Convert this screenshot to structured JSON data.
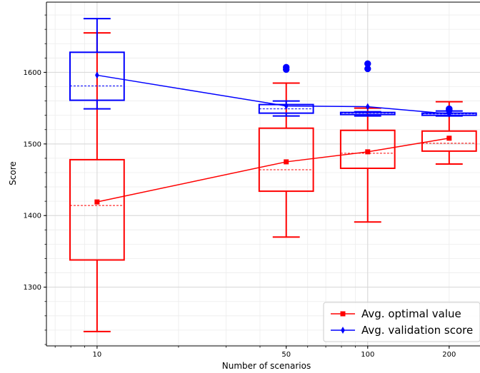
{
  "chart_data": {
    "type": "box",
    "xlabel": "Number of scenarios",
    "ylabel": "Score",
    "x_scale": "log",
    "xlim": [
      6.5,
      260
    ],
    "ylim": [
      1218,
      1698
    ],
    "x_ticks": [
      10,
      50,
      100,
      200
    ],
    "x_tick_labels": [
      "10",
      "50",
      "100",
      "200"
    ],
    "y_ticks": [
      1300,
      1400,
      1500,
      1600
    ],
    "y_tick_labels": [
      "1300",
      "1400",
      "1500",
      "1600"
    ],
    "grid": true,
    "legend_position": "lower-right",
    "series": [
      {
        "name": "Avg. optimal value",
        "color": "#ff0000",
        "marker": "square",
        "boxes": [
          {
            "x": 10,
            "whisker_low": 1238,
            "q1": 1338,
            "median": 1414,
            "q3": 1478,
            "whisker_high": 1655,
            "mean": 1419,
            "fliers": []
          },
          {
            "x": 50,
            "whisker_low": 1370,
            "q1": 1434,
            "median": 1464,
            "q3": 1522,
            "whisker_high": 1585,
            "mean": 1475,
            "fliers": []
          },
          {
            "x": 100,
            "whisker_low": 1391,
            "q1": 1466,
            "median": 1487,
            "q3": 1519,
            "whisker_high": 1550,
            "mean": 1489,
            "fliers": []
          },
          {
            "x": 200,
            "whisker_low": 1472,
            "q1": 1490,
            "median": 1501,
            "q3": 1518,
            "whisker_high": 1559,
            "mean": 1508,
            "fliers": []
          }
        ]
      },
      {
        "name": "Avg. validation score",
        "color": "#0000ff",
        "marker": "thin_diamond",
        "boxes": [
          {
            "x": 10,
            "whisker_low": 1549,
            "q1": 1561,
            "median": 1581,
            "q3": 1628,
            "whisker_high": 1675,
            "mean": 1596,
            "fliers": []
          },
          {
            "x": 50,
            "whisker_low": 1539,
            "q1": 1543,
            "median": 1549,
            "q3": 1555,
            "whisker_high": 1560,
            "mean": 1553,
            "fliers": [
              1604,
              1607
            ]
          },
          {
            "x": 100,
            "whisker_low": 1539,
            "q1": 1541,
            "median": 1543,
            "q3": 1544,
            "whisker_high": 1545,
            "mean": 1552,
            "fliers": [
              1605,
              1612
            ]
          },
          {
            "x": 200,
            "whisker_low": 1539,
            "q1": 1540,
            "median": 1542,
            "q3": 1543,
            "whisker_high": 1546,
            "mean": 1542,
            "fliers": [
              1547,
              1549
            ]
          }
        ]
      }
    ]
  }
}
